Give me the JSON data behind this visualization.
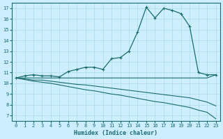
{
  "xlabel": "Humidex (Indice chaleur)",
  "bg_color": "#cceeff",
  "line_color": "#1a6b6b",
  "grid_color": "#aadddd",
  "font_color": "#1a6b6b",
  "xlim": [
    -0.5,
    23.5
  ],
  "ylim": [
    6.5,
    17.5
  ],
  "xticks": [
    0,
    1,
    2,
    3,
    4,
    5,
    6,
    7,
    8,
    9,
    10,
    11,
    12,
    13,
    14,
    15,
    16,
    17,
    18,
    19,
    20,
    21,
    22,
    23
  ],
  "yticks": [
    7,
    8,
    9,
    10,
    11,
    12,
    13,
    14,
    15,
    16,
    17
  ],
  "curve_x": [
    0,
    1,
    2,
    3,
    4,
    5,
    6,
    7,
    8,
    9,
    10,
    11,
    12,
    13,
    14,
    15,
    16,
    17,
    18,
    19,
    20,
    21,
    22,
    23
  ],
  "curve_y": [
    10.5,
    10.7,
    10.8,
    10.7,
    10.7,
    10.6,
    11.1,
    11.3,
    11.5,
    11.5,
    11.3,
    12.3,
    12.4,
    13.0,
    14.8,
    17.1,
    16.1,
    17.0,
    16.8,
    16.5,
    15.3,
    11.0,
    10.8,
    10.8
  ],
  "flat_x": [
    0,
    1,
    2,
    3,
    4,
    5,
    6,
    7,
    8,
    9,
    10,
    11,
    12,
    13,
    14,
    15,
    16,
    17,
    18,
    19,
    20,
    21,
    22,
    23
  ],
  "flat_y": [
    10.5,
    10.5,
    10.5,
    10.5,
    10.5,
    10.5,
    10.5,
    10.5,
    10.5,
    10.5,
    10.5,
    10.5,
    10.5,
    10.5,
    10.5,
    10.5,
    10.5,
    10.5,
    10.5,
    10.5,
    10.5,
    10.5,
    10.5,
    10.8
  ],
  "decline1_x": [
    0,
    1,
    2,
    3,
    4,
    5,
    6,
    7,
    8,
    9,
    10,
    11,
    12,
    13,
    14,
    15,
    16,
    17,
    18,
    19,
    20,
    21,
    22,
    23
  ],
  "decline1_y": [
    10.5,
    10.4,
    10.3,
    10.3,
    10.2,
    10.1,
    10.0,
    9.9,
    9.85,
    9.75,
    9.65,
    9.55,
    9.45,
    9.35,
    9.25,
    9.15,
    9.05,
    8.95,
    8.85,
    8.75,
    8.65,
    8.45,
    8.25,
    7.9
  ],
  "decline2_x": [
    0,
    1,
    2,
    3,
    4,
    5,
    6,
    7,
    8,
    9,
    10,
    11,
    12,
    13,
    14,
    15,
    16,
    17,
    18,
    19,
    20,
    21,
    22,
    23
  ],
  "decline2_y": [
    10.5,
    10.35,
    10.2,
    10.1,
    10.0,
    9.85,
    9.7,
    9.55,
    9.4,
    9.3,
    9.15,
    9.0,
    8.9,
    8.75,
    8.6,
    8.45,
    8.3,
    8.2,
    8.05,
    7.9,
    7.75,
    7.5,
    7.3,
    6.7
  ]
}
